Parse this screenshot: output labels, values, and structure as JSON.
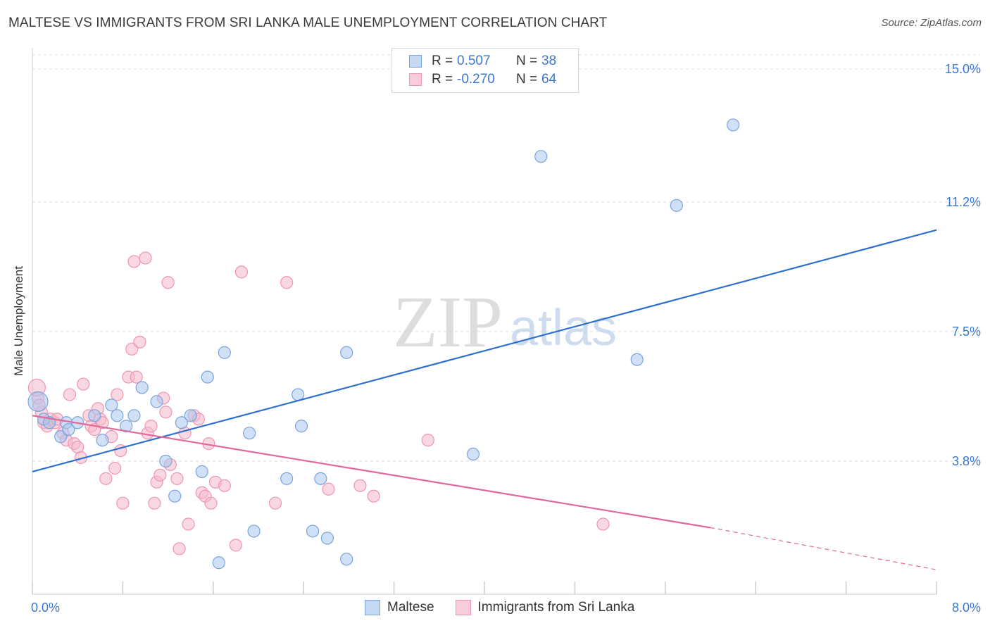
{
  "title": "MALTESE VS IMMIGRANTS FROM SRI LANKA MALE UNEMPLOYMENT CORRELATION CHART",
  "source": "Source: ZipAtlas.com",
  "watermark": {
    "zip": "ZIP",
    "atlas": "atlas"
  },
  "legend": {
    "maltese": {
      "r_label": "R =",
      "r_value": "0.507",
      "n_label": "N =",
      "n_value": "38"
    },
    "srilanka": {
      "r_label": "R =",
      "r_value": "-0.270",
      "n_label": "N =",
      "n_value": "64"
    }
  },
  "colors": {
    "maltese_fill": "#a9c6ee",
    "maltese_stroke": "#7ba4dc",
    "maltese_line": "#2f6fcf",
    "srilanka_fill": "#f6b8cb",
    "srilanka_stroke": "#ee95b2",
    "srilanka_line": "#e2679a",
    "tick_label": "#3a78d0",
    "grid": "#dddddd"
  },
  "chart_data": {
    "type": "scatter",
    "title": "MALTESE VS IMMIGRANTS FROM SRI LANKA MALE UNEMPLOYMENT CORRELATION CHART",
    "xlabel": "",
    "ylabel": "Male Unemployment",
    "xlim": [
      0,
      8
    ],
    "ylim": [
      0,
      15.6
    ],
    "x_tick_labels": [
      "0.0%",
      "8.0%"
    ],
    "y_ticks": [
      3.8,
      7.5,
      11.2,
      15.0
    ],
    "y_tick_labels": [
      "3.8%",
      "7.5%",
      "11.2%",
      "15.0%"
    ],
    "grid": true,
    "legend_position": "top-center",
    "series": [
      {
        "name": "Maltese",
        "points": [
          [
            0.05,
            5.5
          ],
          [
            0.1,
            5.0
          ],
          [
            0.15,
            4.9
          ],
          [
            0.25,
            4.5
          ],
          [
            0.3,
            4.9
          ],
          [
            0.32,
            4.7
          ],
          [
            0.4,
            4.9
          ],
          [
            0.55,
            5.1
          ],
          [
            0.62,
            4.4
          ],
          [
            0.7,
            5.4
          ],
          [
            0.75,
            5.1
          ],
          [
            0.83,
            4.8
          ],
          [
            0.9,
            5.1
          ],
          [
            0.97,
            5.9
          ],
          [
            1.1,
            5.5
          ],
          [
            1.18,
            3.8
          ],
          [
            1.26,
            2.8
          ],
          [
            1.32,
            4.9
          ],
          [
            1.4,
            5.1
          ],
          [
            1.5,
            3.5
          ],
          [
            1.55,
            6.2
          ],
          [
            1.65,
            0.9
          ],
          [
            1.7,
            6.9
          ],
          [
            1.92,
            4.6
          ],
          [
            1.96,
            1.8
          ],
          [
            2.25,
            3.3
          ],
          [
            2.35,
            5.7
          ],
          [
            2.38,
            4.8
          ],
          [
            2.48,
            1.8
          ],
          [
            2.55,
            3.3
          ],
          [
            2.61,
            1.6
          ],
          [
            2.78,
            6.9
          ],
          [
            2.78,
            1.0
          ],
          [
            3.9,
            4.0
          ],
          [
            4.5,
            12.5
          ],
          [
            5.35,
            6.7
          ],
          [
            5.7,
            11.1
          ],
          [
            6.2,
            13.4
          ]
        ],
        "trend": {
          "x": [
            0.0,
            8.0
          ],
          "y": [
            3.5,
            10.4
          ]
        }
      },
      {
        "name": "Immigrants from Sri Lanka",
        "points": [
          [
            0.05,
            5.6
          ],
          [
            0.08,
            5.2
          ],
          [
            0.1,
            4.9
          ],
          [
            0.13,
            4.8
          ],
          [
            0.16,
            5.0
          ],
          [
            0.2,
            4.9
          ],
          [
            0.22,
            5.0
          ],
          [
            0.27,
            4.6
          ],
          [
            0.3,
            4.4
          ],
          [
            0.33,
            5.7
          ],
          [
            0.37,
            4.3
          ],
          [
            0.4,
            4.2
          ],
          [
            0.43,
            3.9
          ],
          [
            0.45,
            6.0
          ],
          [
            0.5,
            5.1
          ],
          [
            0.52,
            4.8
          ],
          [
            0.55,
            4.7
          ],
          [
            0.58,
            5.3
          ],
          [
            0.6,
            5.0
          ],
          [
            0.62,
            4.9
          ],
          [
            0.65,
            3.3
          ],
          [
            0.7,
            4.5
          ],
          [
            0.73,
            3.6
          ],
          [
            0.75,
            5.7
          ],
          [
            0.78,
            4.1
          ],
          [
            0.8,
            2.6
          ],
          [
            0.85,
            6.2
          ],
          [
            0.88,
            7.0
          ],
          [
            0.9,
            9.5
          ],
          [
            0.92,
            6.2
          ],
          [
            0.95,
            7.2
          ],
          [
            1.0,
            9.6
          ],
          [
            1.02,
            4.6
          ],
          [
            1.05,
            4.8
          ],
          [
            1.08,
            2.6
          ],
          [
            1.1,
            3.2
          ],
          [
            1.13,
            3.4
          ],
          [
            1.16,
            5.6
          ],
          [
            1.18,
            5.2
          ],
          [
            1.2,
            8.9
          ],
          [
            1.22,
            3.7
          ],
          [
            1.28,
            3.3
          ],
          [
            1.3,
            1.3
          ],
          [
            1.35,
            4.6
          ],
          [
            1.38,
            2.0
          ],
          [
            1.43,
            5.1
          ],
          [
            1.47,
            5.0
          ],
          [
            1.5,
            2.9
          ],
          [
            1.53,
            2.8
          ],
          [
            1.56,
            4.3
          ],
          [
            1.58,
            2.6
          ],
          [
            1.62,
            3.2
          ],
          [
            1.7,
            3.1
          ],
          [
            1.8,
            1.4
          ],
          [
            1.85,
            9.2
          ],
          [
            2.15,
            2.6
          ],
          [
            2.25,
            8.9
          ],
          [
            2.62,
            3.0
          ],
          [
            2.9,
            3.1
          ],
          [
            3.02,
            2.8
          ],
          [
            3.5,
            4.4
          ],
          [
            5.05,
            2.0
          ],
          [
            0.04,
            5.9
          ],
          [
            0.06,
            5.4
          ]
        ],
        "trend": {
          "x": [
            0.0,
            6.0
          ],
          "y": [
            5.1,
            1.9
          ]
        },
        "trend_dashed": {
          "x": [
            6.0,
            8.0
          ],
          "y": [
            1.9,
            0.7
          ]
        }
      }
    ]
  },
  "bottom_legend": [
    "Maltese",
    "Immigrants from Sri Lanka"
  ]
}
